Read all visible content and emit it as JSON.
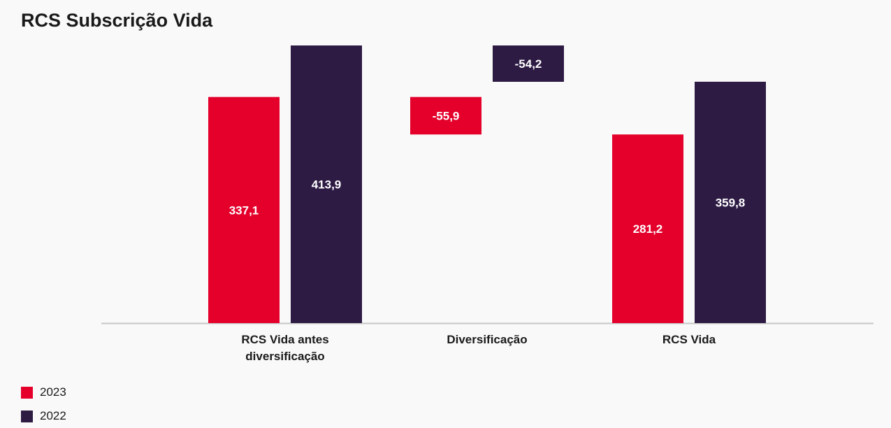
{
  "chart_data": {
    "type": "bar",
    "title": "RCS Subscrição Vida",
    "categories": [
      [
        "RCS Vida antes",
        "diversificação"
      ],
      [
        "Diversificação"
      ],
      [
        "RCS Vida"
      ]
    ],
    "series": [
      {
        "name": "2023",
        "color": "#e4002b",
        "values": [
          337.1,
          -55.9,
          281.2
        ],
        "labels": [
          "337,1",
          "-55,9",
          "281,2"
        ]
      },
      {
        "name": "2022",
        "color": "#2d1b44",
        "values": [
          413.9,
          -54.2,
          359.8
        ],
        "labels": [
          "413,9",
          "-54,2",
          "359,8"
        ]
      }
    ],
    "waterfall": true,
    "ylim": [
      0,
      413.9
    ],
    "legend_position": "bottom-left",
    "grid": false
  }
}
